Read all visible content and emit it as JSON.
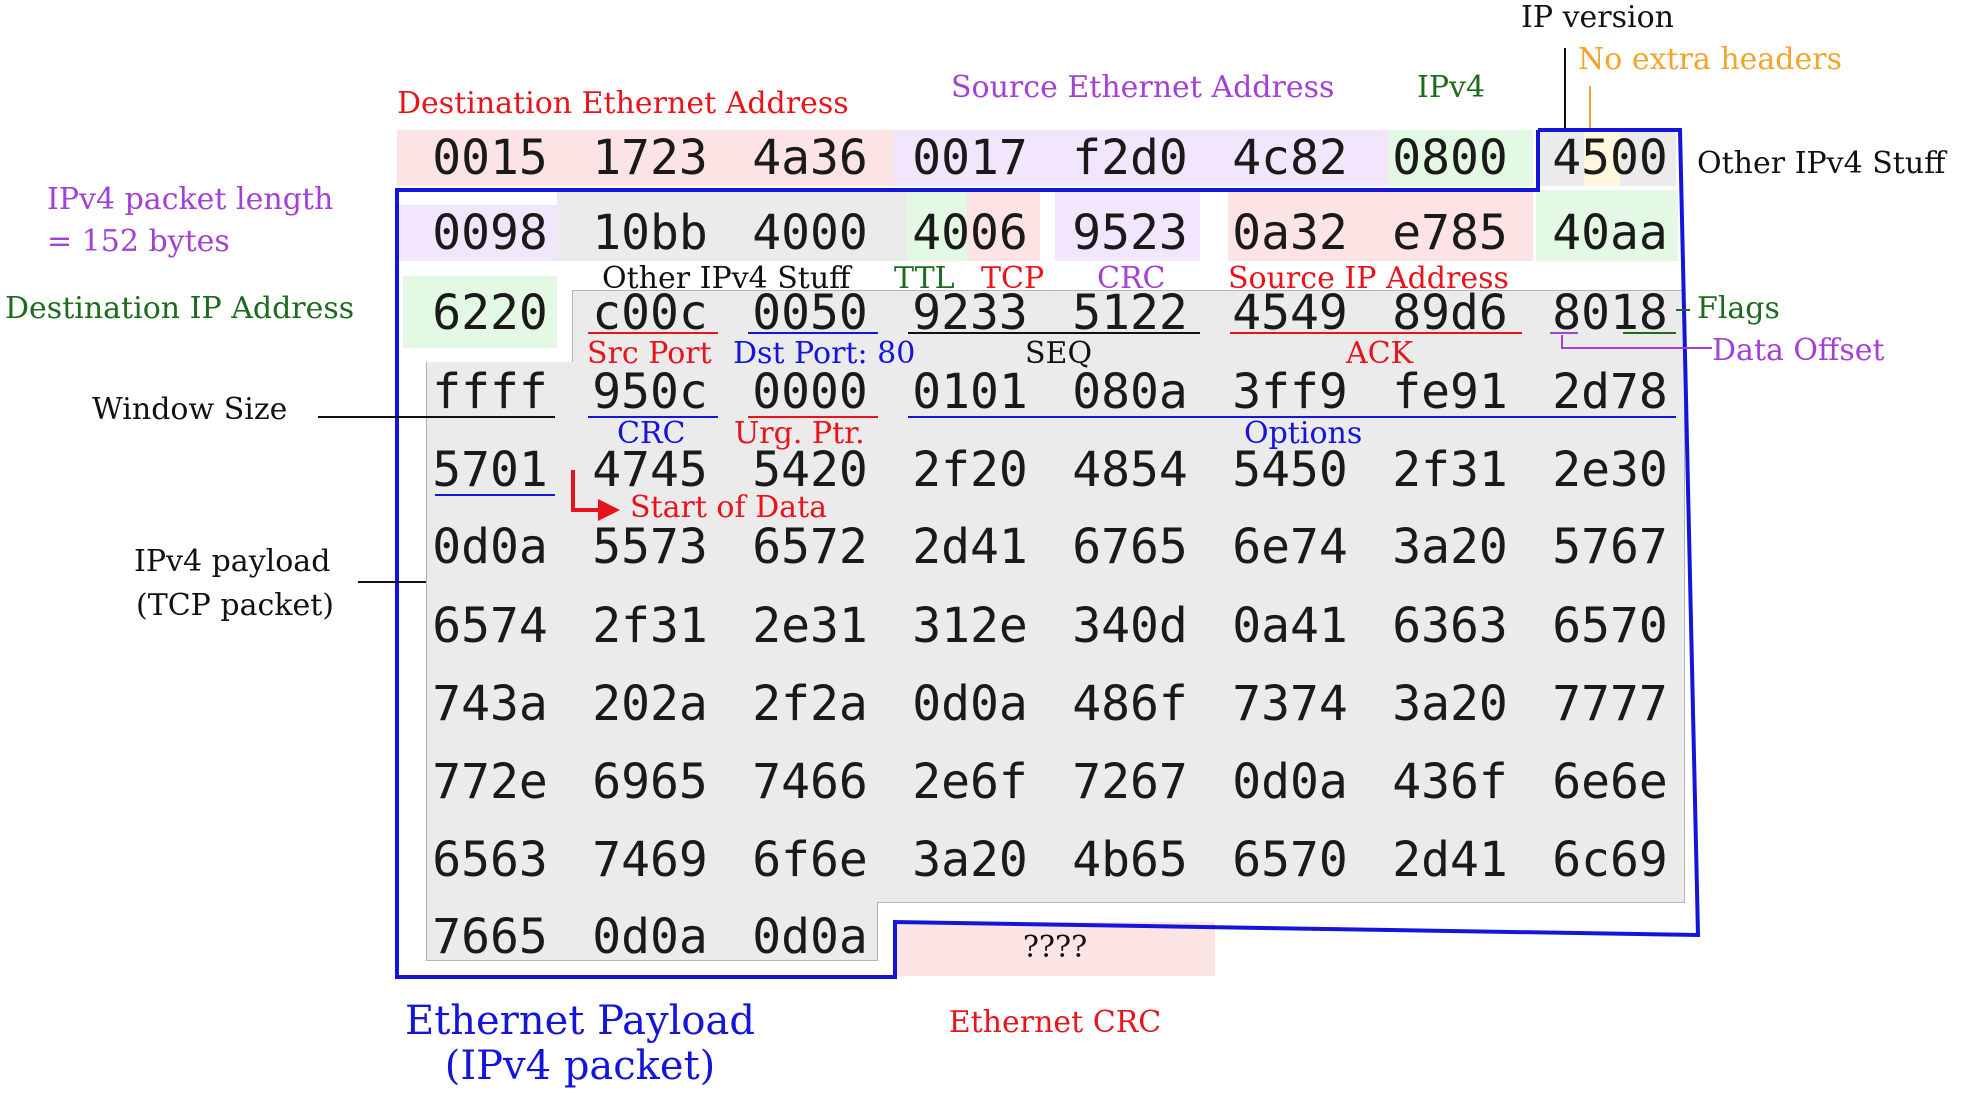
{
  "colors": {
    "red": "#e8141c",
    "purple": "#a341d6",
    "green": "#1d6b1d",
    "blue": "#1515d9",
    "orange": "#f2a52a",
    "black": "#111111",
    "bg_red": "#fde4e4",
    "bg_purple": "#f1e6fb",
    "bg_green": "#e4f9e4",
    "bg_gray": "#ebebeb",
    "bg_yellow": "#fff8dc"
  },
  "hex_rows": [
    [
      "0015",
      "1723",
      "4a36",
      "0017",
      "f2d0",
      "4c82",
      "0800",
      "4500"
    ],
    [
      "0098",
      "10bb",
      "4000",
      "4006",
      "9523",
      "0a32",
      "e785",
      "40aa"
    ],
    [
      "6220",
      "c00c",
      "0050",
      "9233",
      "5122",
      "4549",
      "89d6",
      "8018"
    ],
    [
      "ffff",
      "950c",
      "0000",
      "0101",
      "080a",
      "3ff9",
      "fe91",
      "2d78"
    ],
    [
      "5701",
      "4745",
      "5420",
      "2f20",
      "4854",
      "5450",
      "2f31",
      "2e30"
    ],
    [
      "0d0a",
      "5573",
      "6572",
      "2d41",
      "6765",
      "6e74",
      "3a20",
      "5767"
    ],
    [
      "6574",
      "2f31",
      "2e31",
      "312e",
      "340d",
      "0a41",
      "6363",
      "6570"
    ],
    [
      "743a",
      "202a",
      "2f2a",
      "0d0a",
      "486f",
      "7374",
      "3a20",
      "7777"
    ],
    [
      "772e",
      "6965",
      "7466",
      "2e6f",
      "7267",
      "0d0a",
      "436f",
      "6e6e"
    ],
    [
      "6563",
      "7469",
      "6f6e",
      "3a20",
      "4b65",
      "6570",
      "2d41",
      "6c69"
    ],
    [
      "7665",
      "0d0a",
      "0d0a"
    ]
  ],
  "labels": {
    "dest_eth": "Destination Ethernet Address",
    "src_eth": "Source Ethernet Address",
    "ipv4_type": "IPv4",
    "ip_version": "IP version",
    "no_extra_headers": "No extra headers",
    "other_ipv4_right": "Other IPv4 Stuff",
    "ipv4_len_line1": "IPv4  packet  length",
    "ipv4_len_line2": "= 152 bytes",
    "dest_ip": "Destination IP Address",
    "other_ipv4_mid": "Other IPv4 Stuff",
    "ttl": "TTL",
    "tcp": "TCP",
    "crc_ip": "CRC",
    "src_ip": "Source IP Address",
    "flags": "Flags",
    "src_port": "Src Port",
    "dst_port": "Dst Port: 80",
    "seq": "SEQ",
    "ack": "ACK",
    "data_offset": "Data Offset",
    "window_size": "Window Size",
    "crc_tcp": "CRC",
    "urg_ptr": "Urg. Ptr.",
    "options": "Options",
    "start_of_data": "Start of Data",
    "payload_line1": "IPv4  payload",
    "payload_line2": "(TCP packet)",
    "unknown": "????",
    "eth_payload_line1": "Ethernet Payload",
    "eth_payload_line2": "(IPv4 packet)",
    "eth_crc": "Ethernet CRC"
  }
}
